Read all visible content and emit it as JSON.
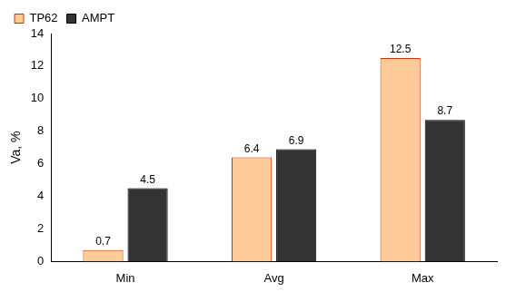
{
  "chart_data": {
    "type": "bar",
    "y_label": "Va, %",
    "categories": [
      "Min",
      "Avg",
      "Max"
    ],
    "series": [
      {
        "name": "TP62",
        "color": "#FFCC99",
        "values": [
          0.7,
          6.4,
          12.5
        ]
      },
      {
        "name": "AMPT",
        "color": "#333333",
        "values": [
          4.5,
          6.9,
          8.7
        ]
      }
    ],
    "ylim": [
      0,
      14
    ],
    "yticks": [
      0,
      2,
      4,
      6,
      8,
      10,
      12,
      14
    ],
    "grid": false,
    "legend": "upper left",
    "data_labels": true
  }
}
